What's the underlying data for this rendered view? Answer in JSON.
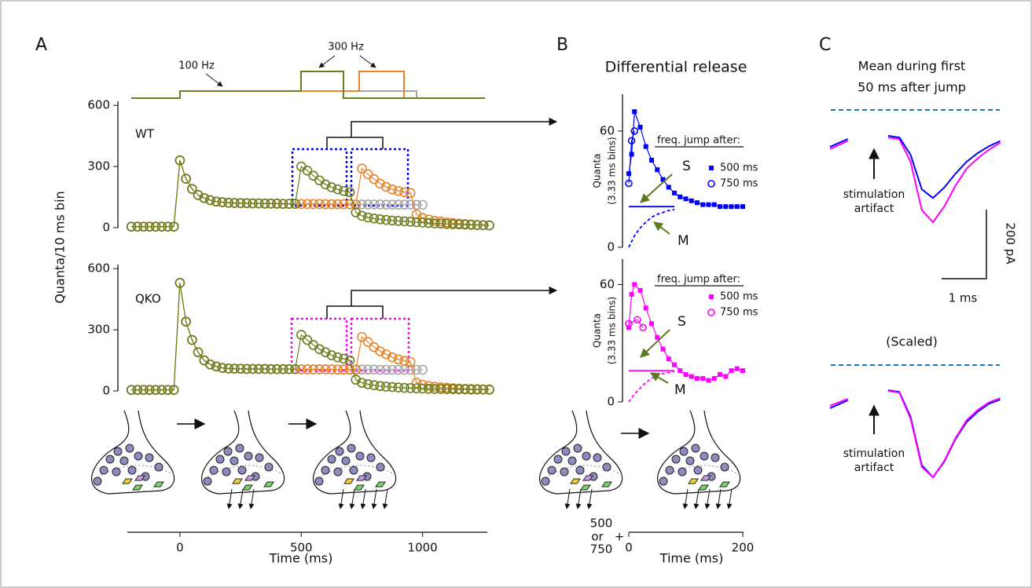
{
  "panel_labels": [
    "A",
    "B",
    "C"
  ],
  "chart_data": [
    {
      "type": "scatter",
      "ylabel": "Quanta/10 ms bin",
      "annotation": "WT",
      "annotation_color": "#0000ff",
      "stimulus_labels": [
        "100 Hz",
        "300 Hz"
      ],
      "x": [
        -200,
        -175,
        -150,
        -125,
        -100,
        -75,
        -50,
        -25,
        0,
        25,
        50,
        75,
        100,
        125,
        150,
        175,
        200,
        225,
        250,
        275,
        300,
        325,
        350,
        375,
        400,
        425,
        450,
        475,
        500,
        525,
        550,
        575,
        600,
        625,
        650,
        675,
        700,
        725,
        750,
        775,
        800,
        825,
        850,
        875,
        900,
        925,
        950,
        975,
        1000,
        1025,
        1050,
        1075,
        1100,
        1125,
        1150,
        1175,
        1200,
        1225,
        1250,
        1275
      ],
      "xlim": [
        -220,
        1270
      ],
      "ylim": [
        0,
        620
      ],
      "yticks": [
        0,
        300,
        600
      ],
      "series": [
        {
          "color": "#a6a6a6",
          "marker": "circle",
          "values": [
            5,
            5,
            5,
            5,
            5,
            5,
            5,
            5,
            330,
            240,
            190,
            160,
            145,
            135,
            128,
            125,
            122,
            121,
            120,
            120,
            119,
            119,
            118,
            118,
            118,
            117,
            117,
            117,
            116,
            116,
            116,
            116,
            115,
            115,
            115,
            115,
            115,
            114,
            114,
            114,
            114,
            114,
            113,
            113,
            113,
            113,
            113,
            112,
            112,
            null,
            null,
            null,
            null,
            null,
            null,
            null,
            null,
            null,
            null,
            null
          ]
        },
        {
          "color": "#e8852b",
          "marker": "circle",
          "values": [
            5,
            5,
            5,
            5,
            5,
            5,
            5,
            5,
            330,
            240,
            190,
            160,
            145,
            135,
            128,
            125,
            122,
            121,
            120,
            120,
            119,
            119,
            118,
            118,
            118,
            117,
            117,
            117,
            116,
            116,
            116,
            116,
            115,
            115,
            115,
            115,
            115,
            114,
            290,
            262,
            238,
            216,
            200,
            188,
            180,
            174,
            170,
            65,
            48,
            40,
            34,
            30,
            26,
            23,
            20,
            18,
            16,
            14,
            13,
            12
          ]
        },
        {
          "color": "#6b7d1e",
          "marker": "circle",
          "values": [
            5,
            5,
            5,
            5,
            5,
            5,
            5,
            5,
            330,
            240,
            190,
            160,
            145,
            135,
            128,
            125,
            122,
            121,
            120,
            120,
            119,
            119,
            118,
            118,
            118,
            117,
            117,
            117,
            300,
            280,
            255,
            232,
            212,
            198,
            188,
            180,
            174,
            75,
            58,
            50,
            45,
            41,
            38,
            35,
            33,
            31,
            29,
            27,
            25,
            23,
            21,
            20,
            18,
            17,
            16,
            15,
            14,
            13,
            12,
            11
          ]
        }
      ]
    },
    {
      "type": "scatter",
      "annotation": "QKO",
      "annotation_color": "#ff00ff",
      "xlabel": "Time (ms)",
      "x": [
        -200,
        -175,
        -150,
        -125,
        -100,
        -75,
        -50,
        -25,
        0,
        25,
        50,
        75,
        100,
        125,
        150,
        175,
        200,
        225,
        250,
        275,
        300,
        325,
        350,
        375,
        400,
        425,
        450,
        475,
        500,
        525,
        550,
        575,
        600,
        625,
        650,
        675,
        700,
        725,
        750,
        775,
        800,
        825,
        850,
        875,
        900,
        925,
        950,
        975,
        1000,
        1025,
        1050,
        1075,
        1100,
        1125,
        1150,
        1175,
        1200,
        1225,
        1250,
        1275
      ],
      "xlim": [
        -220,
        1270
      ],
      "xticks": [
        0,
        500,
        1000
      ],
      "ylim": [
        0,
        620
      ],
      "yticks": [
        0,
        300,
        600
      ],
      "series": [
        {
          "color": "#a6a6a6",
          "marker": "circle",
          "values": [
            5,
            5,
            5,
            5,
            5,
            5,
            5,
            5,
            530,
            340,
            250,
            190,
            150,
            130,
            120,
            113,
            110,
            109,
            109,
            108,
            108,
            108,
            108,
            107,
            107,
            107,
            107,
            107,
            106,
            106,
            106,
            106,
            106,
            106,
            105,
            105,
            105,
            105,
            105,
            105,
            105,
            104,
            104,
            104,
            104,
            104,
            104,
            104,
            104,
            null,
            null,
            null,
            null,
            null,
            null,
            null,
            null,
            null,
            null,
            null
          ]
        },
        {
          "color": "#e8852b",
          "marker": "circle",
          "values": [
            5,
            5,
            5,
            5,
            5,
            5,
            5,
            5,
            530,
            340,
            250,
            190,
            150,
            130,
            120,
            113,
            110,
            109,
            109,
            108,
            108,
            108,
            108,
            107,
            107,
            107,
            107,
            107,
            106,
            106,
            106,
            106,
            106,
            106,
            105,
            105,
            105,
            105,
            265,
            240,
            215,
            195,
            180,
            165,
            155,
            148,
            142,
            40,
            30,
            25,
            21,
            18,
            16,
            14,
            12,
            11,
            10,
            9,
            8,
            8
          ]
        },
        {
          "color": "#6b7d1e",
          "marker": "circle",
          "values": [
            5,
            5,
            5,
            5,
            5,
            5,
            5,
            5,
            530,
            340,
            250,
            190,
            150,
            130,
            120,
            113,
            110,
            109,
            109,
            108,
            108,
            108,
            108,
            107,
            107,
            107,
            107,
            107,
            275,
            250,
            225,
            205,
            190,
            175,
            165,
            158,
            150,
            55,
            40,
            33,
            28,
            24,
            21,
            19,
            17,
            15,
            14,
            13,
            12,
            11,
            10,
            10,
            9,
            9,
            8,
            8,
            7,
            7,
            7,
            6
          ]
        }
      ]
    },
    {
      "type": "scatter",
      "title": "Differential release",
      "ylabel": [
        "Quanta",
        "(3.33 ms bins)"
      ],
      "legend_title": "freq. jump after:",
      "xlim": [
        0,
        200
      ],
      "ylim": [
        0,
        79
      ],
      "yticks": [
        0,
        60
      ],
      "series": [
        {
          "name": "500 ms",
          "color": "#0000ff",
          "marker": "square",
          "x": [
            0,
            5,
            10,
            20,
            30,
            40,
            50,
            60,
            70,
            80,
            90,
            100,
            110,
            120,
            130,
            140,
            150,
            160,
            170,
            180,
            190,
            200
          ],
          "values": [
            38,
            48,
            70,
            62,
            52,
            45,
            40,
            35,
            31,
            28,
            26,
            25,
            24,
            23,
            22,
            22,
            22,
            21,
            21,
            21,
            21,
            21
          ]
        },
        {
          "name": "750 ms",
          "color": "#0000ff",
          "marker": "circle",
          "x": [
            0,
            5,
            10
          ],
          "values": [
            33,
            55,
            60
          ]
        },
        {
          "label": "S",
          "label_color": "#5c7a1e",
          "color": "#0000ff",
          "x": [
            0,
            80
          ],
          "values": [
            21,
            21
          ]
        },
        {
          "label": "M",
          "label_color": "#5c7a1e",
          "color": "#0000ff",
          "dash": true,
          "x": [
            0,
            10,
            20,
            30,
            40,
            50,
            60,
            70,
            80
          ],
          "values": [
            0,
            6,
            10,
            13,
            15.5,
            17,
            18,
            19,
            19.5
          ]
        }
      ]
    },
    {
      "type": "scatter",
      "ylabel": [
        "Quanta",
        "(3.33 ms bins)"
      ],
      "legend_title": "freq. jump after:",
      "xlabel": "Time (ms)",
      "x_offset_label": [
        "500",
        "or",
        "+",
        "750"
      ],
      "xlim": [
        0,
        200
      ],
      "xticks": [
        0,
        200
      ],
      "ylim": [
        0,
        73
      ],
      "yticks": [
        0,
        60
      ],
      "series": [
        {
          "name": "500 ms",
          "color": "#ff00ff",
          "marker": "square",
          "x": [
            0,
            5,
            10,
            20,
            30,
            40,
            50,
            60,
            70,
            80,
            90,
            100,
            110,
            120,
            130,
            140,
            150,
            160,
            170,
            180,
            190,
            200
          ],
          "values": [
            38,
            55,
            60,
            57,
            48,
            40,
            33,
            27,
            22,
            19,
            16,
            14,
            13,
            12,
            12,
            11,
            12,
            14,
            13,
            16,
            17,
            16
          ]
        },
        {
          "name": "750 ms",
          "color": "#ff00ff",
          "marker": "circle",
          "x": [
            0,
            15,
            25
          ],
          "values": [
            40,
            42,
            38
          ]
        },
        {
          "label": "S",
          "label_color": "#5c7a1e",
          "color": "#ff00ff",
          "x": [
            0,
            80
          ],
          "values": [
            16,
            16
          ]
        },
        {
          "label": "M",
          "label_color": "#5c7a1e",
          "color": "#ff00ff",
          "dash": true,
          "x": [
            0,
            10,
            20,
            30,
            40,
            50,
            60,
            70,
            80
          ],
          "values": [
            0,
            4,
            7,
            10,
            12,
            13.5,
            14.5,
            15,
            15.5
          ]
        }
      ]
    },
    {
      "type": "line",
      "title": [
        "Mean during first",
        "50 ms after jump"
      ],
      "annotation": [
        "stimulation",
        "artifact"
      ],
      "scale_labels": [
        "200 pA",
        "1 ms"
      ],
      "x": [
        -1.3,
        -0.9,
        -0.5,
        0,
        0.25,
        0.5,
        0.75,
        1,
        1.25,
        1.5,
        1.75,
        2,
        2.25,
        2.5
      ],
      "series": [
        {
          "color": "#ff00ff",
          "values": [
            -113,
            -90,
            null,
            -80,
            -85,
            -150,
            -290,
            -325,
            -280,
            -220,
            -170,
            -140,
            -115,
            -95
          ]
        },
        {
          "color": "#0000ff",
          "values": [
            -107,
            -84,
            null,
            -75,
            -80,
            -130,
            -230,
            -255,
            -225,
            -185,
            -150,
            -125,
            -105,
            -90
          ]
        }
      ]
    },
    {
      "type": "line",
      "title": [
        "(Scaled)"
      ],
      "annotation": [
        "stimulation",
        "artifact"
      ],
      "x": [
        -1.3,
        -0.9,
        -0.5,
        0,
        0.25,
        0.5,
        0.75,
        1,
        1.25,
        1.5,
        1.75,
        2,
        2.25,
        2.5
      ],
      "series": [
        {
          "color": "#0000ff",
          "values": [
            -125,
            -102,
            null,
            -73,
            -78,
            -150,
            -290,
            -325,
            -280,
            -215,
            -165,
            -135,
            -112,
            -100
          ]
        },
        {
          "color": "#ff00ff",
          "values": [
            -118,
            -98,
            null,
            -75,
            -80,
            -155,
            -295,
            -325,
            -278,
            -212,
            -160,
            -130,
            -108,
            -96
          ]
        }
      ]
    }
  ]
}
